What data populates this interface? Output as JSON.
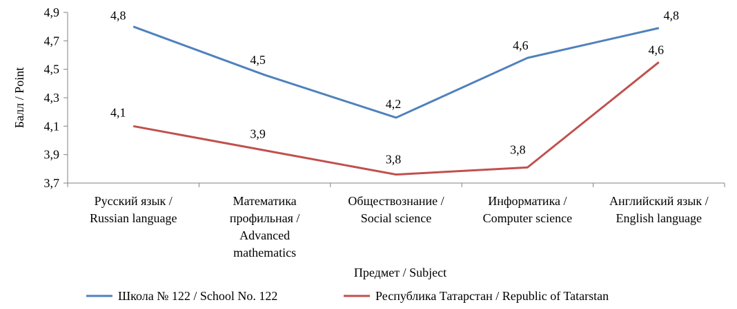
{
  "chart_data": {
    "type": "line",
    "categories": [
      [
        "Русский язык /",
        "Russian language"
      ],
      [
        "Математика",
        "профильная /",
        "Advanced",
        "mathematics"
      ],
      [
        "Обществознание  /",
        "Social science"
      ],
      [
        "Информатика /",
        "Computer science"
      ],
      [
        "Английский язык /",
        "English language"
      ]
    ],
    "series": [
      {
        "name": "Школа № 122 / School No. 122",
        "color": "#4F81BD",
        "values": [
          4.8,
          4.46,
          4.16,
          4.58,
          4.79
        ],
        "labels": [
          "4,8",
          "4,5",
          "4,2",
          "4,6",
          "4,8"
        ]
      },
      {
        "name": "Республика Татарстан / Republic of Tatarstan",
        "color": "#C0504D",
        "values": [
          4.1,
          3.93,
          3.76,
          3.81,
          4.55
        ],
        "labels": [
          "4,1",
          "3,9",
          "3,8",
          "3,8",
          "4,6"
        ]
      }
    ],
    "yticks": [
      "3,7",
      "3,9",
      "4,1",
      "4,3",
      "4,5",
      "4,7",
      "4,9"
    ],
    "ylim": [
      3.7,
      4.9
    ],
    "ylabel": "Балл / Point",
    "xlabel": "Предмет / Subject",
    "grid": false,
    "legend_position": "bottom"
  }
}
